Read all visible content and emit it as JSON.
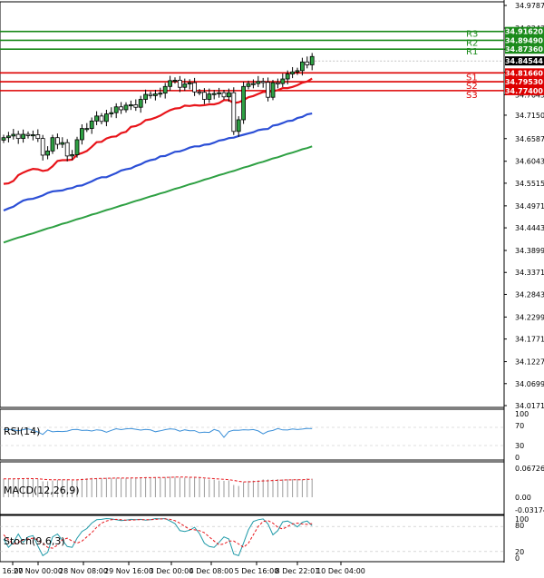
{
  "chart_data": {
    "type": "candlestick",
    "price_ticks": [
      "34.97870",
      "34.92430",
      "34.87360",
      "34.81860",
      "34.76430",
      "34.71500",
      "34.65870",
      "34.60430",
      "34.55150",
      "34.49710",
      "34.44430",
      "34.38990",
      "34.33710",
      "34.28430",
      "34.22990",
      "34.17710",
      "34.12270",
      "34.06990",
      "34.01710"
    ],
    "price_range": [
      34.0171,
      34.9787
    ],
    "x_labels": [
      "16:00",
      "27 Nov 00:00",
      "28 Nov 08:00",
      "29 Nov 16:00",
      "3 Dec 00:00",
      "4 Dec 08:00",
      "5 Dec 16:00",
      "8 Dec 22:01",
      "10 Dec 04:00"
    ],
    "levels": [
      {
        "name": "R3",
        "value": 34.9162,
        "label": "34.91620",
        "color": "#1a8a1a"
      },
      {
        "name": "R2",
        "value": 34.8949,
        "label": "34.89490",
        "color": "#1a8a1a"
      },
      {
        "name": "R1",
        "value": 34.8736,
        "label": "34.87360",
        "color": "#1a8a1a"
      },
      {
        "name": "S1",
        "value": 34.8166,
        "label": "34.81660",
        "color": "#dd0000"
      },
      {
        "name": "S2",
        "value": 34.7953,
        "label": "34.79530",
        "color": "#dd0000"
      },
      {
        "name": "S3",
        "value": 34.774,
        "label": "34.77400",
        "color": "#dd0000"
      }
    ],
    "current_price": {
      "value": 34.84544,
      "label": "34.84544"
    },
    "closes": [
      34.661,
      34.665,
      34.669,
      34.659,
      34.669,
      34.666,
      34.668,
      34.659,
      34.619,
      34.629,
      34.661,
      34.645,
      34.649,
      34.617,
      34.62,
      34.656,
      34.683,
      34.683,
      34.701,
      34.713,
      34.7,
      34.718,
      34.721,
      34.735,
      34.728,
      34.739,
      34.74,
      34.734,
      34.753,
      34.765,
      34.762,
      34.766,
      34.768,
      34.784,
      34.798,
      34.799,
      34.782,
      34.79,
      34.793,
      34.771,
      34.77,
      34.753,
      34.766,
      34.767,
      34.769,
      34.759,
      34.769,
      34.676,
      34.704,
      34.784,
      34.791,
      34.791,
      34.796,
      34.794,
      34.758,
      34.793,
      34.791,
      34.802,
      34.814,
      34.819,
      34.822,
      34.843,
      34.836,
      34.856
    ],
    "ma_series": [
      {
        "color": "#e8141a",
        "values": [
          34.55,
          34.551,
          34.557,
          34.571,
          34.577,
          34.582,
          34.586,
          34.585,
          34.581,
          34.583,
          34.592,
          34.605,
          34.607,
          34.607,
          34.608,
          34.62,
          34.624,
          34.629,
          34.639,
          34.65,
          34.651,
          34.659,
          34.663,
          34.664,
          34.672,
          34.675,
          34.687,
          34.689,
          34.694,
          34.703,
          34.705,
          34.709,
          34.714,
          34.721,
          34.727,
          34.731,
          34.732,
          34.738,
          34.737,
          34.739,
          34.738,
          34.739,
          34.741,
          34.741,
          34.744,
          34.751,
          34.751,
          34.744,
          34.746,
          34.751,
          34.758,
          34.761,
          34.766,
          34.771,
          34.771,
          34.773,
          34.775,
          34.78,
          34.78,
          34.783,
          34.787,
          34.793,
          34.796,
          34.803
        ]
      },
      {
        "color": "#2c4fd6",
        "values": [
          34.486,
          34.491,
          34.495,
          34.503,
          34.51,
          34.513,
          34.514,
          34.518,
          34.522,
          34.528,
          34.532,
          34.533,
          34.534,
          34.538,
          34.54,
          34.545,
          34.546,
          34.551,
          34.556,
          34.562,
          34.566,
          34.566,
          34.571,
          34.576,
          34.582,
          34.585,
          34.587,
          34.593,
          34.597,
          34.603,
          34.607,
          34.609,
          34.616,
          34.617,
          34.622,
          34.627,
          34.628,
          34.632,
          34.637,
          34.64,
          34.64,
          34.644,
          34.645,
          34.649,
          34.654,
          34.656,
          34.66,
          34.661,
          34.665,
          34.668,
          34.671,
          34.674,
          34.679,
          34.681,
          34.682,
          34.69,
          34.692,
          34.696,
          34.701,
          34.702,
          34.708,
          34.711,
          34.717,
          34.719
        ]
      },
      {
        "color": "#2ea043",
        "values": [
          34.409,
          34.413,
          34.417,
          34.421,
          34.424,
          34.428,
          34.431,
          34.435,
          34.439,
          34.443,
          34.446,
          34.45,
          34.454,
          34.457,
          34.461,
          34.465,
          34.468,
          34.472,
          34.476,
          34.479,
          34.483,
          34.487,
          34.49,
          34.494,
          34.498,
          34.501,
          34.505,
          34.509,
          34.512,
          34.516,
          34.52,
          34.523,
          34.527,
          34.53,
          34.534,
          34.538,
          34.541,
          34.545,
          34.549,
          34.552,
          34.556,
          34.56,
          34.563,
          34.567,
          34.571,
          34.574,
          34.578,
          34.581,
          34.585,
          34.589,
          34.592,
          34.596,
          34.6,
          34.603,
          34.607,
          34.611,
          34.614,
          34.618,
          34.622,
          34.625,
          34.629,
          34.633,
          34.636,
          34.64
        ]
      }
    ],
    "rsi": {
      "label": "RSI(14)",
      "ticks": [
        "100",
        "70",
        "30",
        "0"
      ],
      "levels": [
        70,
        30
      ],
      "values": [
        65.1,
        65.6,
        64.8,
        62.4,
        65.0,
        66.6,
        63.6,
        59.8,
        54.5,
        64.3,
        60.1,
        61.2,
        60.8,
        61.8,
        65.0,
        65.6,
        63.2,
        63.8,
        62.0,
        64.6,
        63.4,
        59.4,
        63.4,
        67.0,
        65.0,
        66.8,
        67.6,
        65.7,
        64.0,
        65.6,
        64.5,
        60.4,
        62.4,
        65.0,
        66.9,
        65.9,
        61.6,
        64.6,
        62.5,
        62.8,
        58.2,
        59.4,
        58.8,
        65.5,
        61.9,
        48.0,
        60.9,
        63.7,
        63.5,
        64.9,
        64.3,
        65.1,
        62.3,
        55.6,
        61.1,
        63.2,
        67.5,
        64.5,
        64.2,
        66.6,
        65.3,
        66.2,
        67.9,
        67.3
      ]
    },
    "macd": {
      "label": "MACD(12,26,9)",
      "ticks": [
        "0.067263",
        "0.00",
        "-0.031746"
      ],
      "range": [
        -0.031746,
        0.067263
      ],
      "values": [
        0.0378,
        0.0387,
        0.0379,
        0.0386,
        0.0392,
        0.0393,
        0.0379,
        0.0371,
        0.0327,
        0.0328,
        0.0343,
        0.036,
        0.0367,
        0.0368,
        0.0344,
        0.0358,
        0.0381,
        0.0389,
        0.0398,
        0.0395,
        0.0393,
        0.0401,
        0.0396,
        0.0402,
        0.0394,
        0.0397,
        0.0402,
        0.0398,
        0.0409,
        0.0411,
        0.0409,
        0.0404,
        0.0404,
        0.0416,
        0.0425,
        0.0425,
        0.0408,
        0.0406,
        0.0416,
        0.0401,
        0.0405,
        0.0382,
        0.0365,
        0.0364,
        0.0343,
        0.0338,
        0.0346,
        0.0253,
        0.0232,
        0.0312,
        0.0339,
        0.0343,
        0.0349,
        0.0368,
        0.0368,
        0.0365,
        0.0372,
        0.0367,
        0.0371,
        0.0371,
        0.0371,
        0.0365,
        0.0389,
        0.0381
      ],
      "signal": [
        0.0378,
        0.038,
        0.038,
        0.0381,
        0.0383,
        0.0385,
        0.0384,
        0.0381,
        0.037,
        0.0362,
        0.0358,
        0.0358,
        0.0359,
        0.0361,
        0.0357,
        0.0359,
        0.0365,
        0.0371,
        0.0378,
        0.0384,
        0.0386,
        0.0389,
        0.0393,
        0.0394,
        0.0395,
        0.0394,
        0.0396,
        0.0397,
        0.04,
        0.0404,
        0.0404,
        0.0406,
        0.0406,
        0.0408,
        0.041,
        0.0414,
        0.0414,
        0.0414,
        0.0412,
        0.0411,
        0.0407,
        0.0397,
        0.039,
        0.0383,
        0.0375,
        0.0369,
        0.0362,
        0.0346,
        0.0328,
        0.0316,
        0.0318,
        0.0322,
        0.0328,
        0.0336,
        0.0339,
        0.0344,
        0.0349,
        0.0353,
        0.0357,
        0.0359,
        0.036,
        0.036,
        0.0366,
        0.037
      ]
    },
    "stoch": {
      "label": "Stoch(9,6,3)",
      "ticks": [
        "100",
        "80",
        "20",
        "0"
      ],
      "k": [
        50,
        30,
        42,
        62,
        42,
        55,
        58,
        33,
        10,
        18,
        55,
        62,
        47,
        32,
        30,
        52,
        68,
        75,
        88,
        96,
        97,
        99,
        98,
        96,
        94,
        95,
        97,
        96,
        97,
        95,
        96,
        99,
        98,
        99,
        93,
        87,
        70,
        68,
        71,
        78,
        63,
        40,
        32,
        30,
        42,
        55,
        50,
        14,
        10,
        40,
        72,
        92,
        96,
        98,
        86,
        60,
        70,
        91,
        93,
        87,
        79,
        90,
        93,
        82
      ],
      "d": [
        60,
        48,
        38,
        42,
        48,
        50,
        52,
        48,
        40,
        30,
        28,
        35,
        48,
        52,
        45,
        40,
        45,
        55,
        65,
        78,
        88,
        93,
        96,
        97,
        96,
        95,
        95,
        96,
        96,
        96,
        96,
        97,
        98,
        98,
        97,
        94,
        88,
        80,
        73,
        72,
        70,
        65,
        55,
        45,
        36,
        38,
        45,
        45,
        38,
        30,
        40,
        60,
        80,
        92,
        94,
        88,
        78,
        74,
        80,
        86,
        88,
        86,
        85,
        87
      ]
    }
  }
}
